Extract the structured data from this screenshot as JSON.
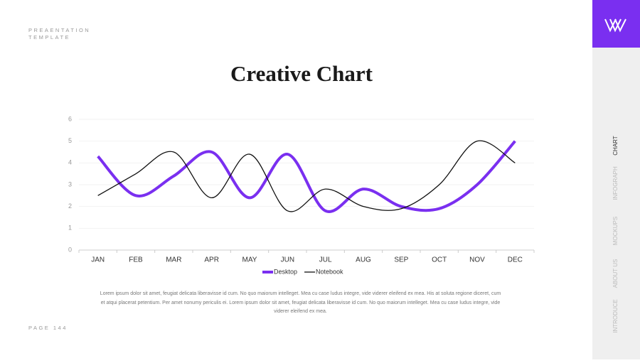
{
  "header": {
    "lines": [
      "PREAENTATION",
      "TEMPLATE"
    ]
  },
  "footer": {
    "page": "PAGE 144"
  },
  "nav": {
    "items": [
      "CHART",
      "INFOGRAPH",
      "MOCKUPS",
      "ABOUT US",
      "INTRODUCE"
    ],
    "active": 0
  },
  "chart_data": {
    "type": "line",
    "title": "Creative Chart",
    "categories": [
      "JAN",
      "FEB",
      "MAR",
      "APR",
      "MAY",
      "JUN",
      "JUL",
      "AUG",
      "SEP",
      "OCT",
      "NOV",
      "DEC"
    ],
    "series": [
      {
        "name": "Desktop",
        "color": "#7a2ff0",
        "values": [
          4.3,
          2.5,
          3.4,
          4.5,
          2.4,
          4.4,
          1.8,
          2.8,
          2.0,
          1.9,
          3.0,
          5.0
        ]
      },
      {
        "name": "Notebook",
        "color": "#111111",
        "values": [
          2.5,
          3.5,
          4.5,
          2.4,
          4.4,
          1.8,
          2.8,
          2.0,
          1.9,
          3.0,
          5.0,
          4.0
        ]
      }
    ],
    "ylim": [
      0,
      6
    ],
    "yticks": [
      0,
      1,
      2,
      3,
      4,
      5,
      6
    ],
    "grid": true,
    "smooth": true,
    "legend": "bottom"
  },
  "body": {
    "text": "Lorem ipsum dolor sit amet, feugiat delicata liberavisse id cum. No quo maiorum intelleget. Mea cu case ludus integre, vide viderer eleifend ex mea. His at soluta regione diceret, cum et atqui placerat petentium. Per amet nonumy periculis ei. Lorem ipsum dolor sit amet, feugiat delicata liberavisse id cum. No quo maiorum intelleget. Mea cu case ludus integre, vide viderer eleifend ex mea."
  }
}
